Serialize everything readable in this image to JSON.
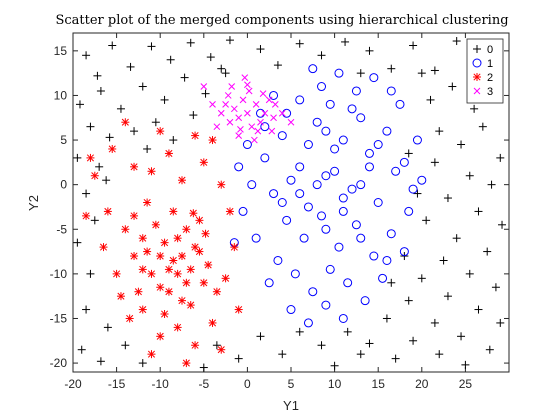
{
  "chart_data": {
    "type": "scatter",
    "title": "Scatter plot of the merged components using hierarchical clustering",
    "xlabel": "Y1",
    "ylabel": "Y2",
    "xlim": [
      -20,
      30
    ],
    "ylim": [
      -21,
      17
    ],
    "xticks": [
      -20,
      -15,
      -10,
      -5,
      0,
      5,
      10,
      15,
      20,
      25
    ],
    "yticks": [
      -20,
      -15,
      -10,
      -5,
      0,
      5,
      10,
      15
    ],
    "grid": false,
    "legend_position": "top-right",
    "series": [
      {
        "name": "0",
        "marker": "plus",
        "color": "#000000",
        "points": [
          [
            -18.5,
            14.5
          ],
          [
            -17.2,
            12.2
          ],
          [
            -15.5,
            15.6
          ],
          [
            -13.4,
            13.2
          ],
          [
            -11.0,
            15.5
          ],
          [
            -8.8,
            14.0
          ],
          [
            -6.5,
            15.9
          ],
          [
            -4.2,
            14.3
          ],
          [
            -2.0,
            16.2
          ],
          [
            1.5,
            15.2
          ],
          [
            3.5,
            13.4
          ],
          [
            6.0,
            15.8
          ],
          [
            8.5,
            14.5
          ],
          [
            11.2,
            16.0
          ],
          [
            14.0,
            15.0
          ],
          [
            16.5,
            13.0
          ],
          [
            19.0,
            15.6
          ],
          [
            21.5,
            12.8
          ],
          [
            24.0,
            16.1
          ],
          [
            26.8,
            14.1
          ],
          [
            28.8,
            12.0
          ],
          [
            -19.2,
            9.0
          ],
          [
            -16.8,
            10.5
          ],
          [
            -14.5,
            8.5
          ],
          [
            -12.0,
            11.0
          ],
          [
            -9.5,
            9.5
          ],
          [
            -7.2,
            12.0
          ],
          [
            -4.8,
            10.2
          ],
          [
            -3.0,
            13.0
          ],
          [
            -18.0,
            6.5
          ],
          [
            -15.8,
            5.3
          ],
          [
            -13.0,
            6.0
          ],
          [
            -10.5,
            7.0
          ],
          [
            -8.5,
            5.0
          ],
          [
            -6.2,
            7.8
          ],
          [
            -19.5,
            3.0
          ],
          [
            -17.0,
            2.0
          ],
          [
            -18.5,
            -1.0
          ],
          [
            -16.2,
            0.5
          ],
          [
            21.0,
            9.5
          ],
          [
            23.5,
            11.0
          ],
          [
            26.0,
            8.5
          ],
          [
            28.5,
            10.0
          ],
          [
            22.0,
            6.0
          ],
          [
            24.5,
            4.5
          ],
          [
            27.0,
            6.5
          ],
          [
            29.0,
            3.0
          ],
          [
            25.5,
            1.0
          ],
          [
            21.5,
            2.5
          ],
          [
            28.0,
            0.0
          ],
          [
            23.0,
            -1.5
          ],
          [
            26.5,
            -3.0
          ],
          [
            29.2,
            -4.5
          ],
          [
            20.5,
            -4.0
          ],
          [
            24.0,
            -6.0
          ],
          [
            27.5,
            -7.5
          ],
          [
            22.5,
            -8.5
          ],
          [
            25.5,
            -10.0
          ],
          [
            28.5,
            -11.5
          ],
          [
            20.0,
            -10.5
          ],
          [
            23.0,
            -12.5
          ],
          [
            26.5,
            -14.0
          ],
          [
            29.0,
            -15.5
          ],
          [
            18.5,
            -13.0
          ],
          [
            21.5,
            -15.5
          ],
          [
            24.5,
            -17.0
          ],
          [
            27.8,
            -18.5
          ],
          [
            16.0,
            -15.0
          ],
          [
            19.0,
            -17.5
          ],
          [
            22.0,
            -19.0
          ],
          [
            25.0,
            -20.2
          ],
          [
            14.0,
            -17.8
          ],
          [
            17.0,
            -19.5
          ],
          [
            11.5,
            -16.5
          ],
          [
            13.0,
            -19.0
          ],
          [
            8.5,
            -18.0
          ],
          [
            10.0,
            -20.3
          ],
          [
            6.0,
            -16.5
          ],
          [
            4.0,
            -19.0
          ],
          [
            1.5,
            -17.0
          ],
          [
            -1.0,
            -19.5
          ],
          [
            -3.5,
            -18.0
          ],
          [
            -5.0,
            -20.5
          ],
          [
            -18.5,
            -14.0
          ],
          [
            -16.0,
            -16.0
          ],
          [
            -19.0,
            -18.5
          ],
          [
            -16.8,
            -19.8
          ],
          [
            -14.0,
            -18.0
          ],
          [
            -12.0,
            -20.0
          ],
          [
            -18.0,
            -10.0
          ],
          [
            -19.5,
            -6.5
          ],
          [
            -17.5,
            -4.0
          ],
          [
            18.0,
            -8.0
          ],
          [
            16.5,
            -11.0
          ],
          [
            19.5,
            -1.0
          ],
          [
            18.5,
            3.5
          ],
          [
            20.0,
            12.5
          ],
          [
            -11.5,
            4.0
          ],
          [
            -2.5,
            12.5
          ],
          [
            13.0,
            12.5
          ]
        ]
      },
      {
        "name": "1",
        "marker": "circle",
        "color": "#0000ff",
        "points": [
          [
            2.0,
            3.0
          ],
          [
            4.0,
            5.5
          ],
          [
            6.0,
            2.0
          ],
          [
            8.0,
            7.0
          ],
          [
            10.0,
            4.0
          ],
          [
            12.0,
            8.5
          ],
          [
            14.0,
            3.5
          ],
          [
            16.0,
            6.0
          ],
          [
            18.0,
            2.5
          ],
          [
            3.0,
            -1.0
          ],
          [
            5.0,
            0.5
          ],
          [
            7.0,
            -2.5
          ],
          [
            9.0,
            1.0
          ],
          [
            11.0,
            -1.5
          ],
          [
            13.0,
            0.0
          ],
          [
            15.0,
            -2.0
          ],
          [
            17.0,
            1.5
          ],
          [
            19.0,
            -0.5
          ],
          [
            4.5,
            -4.0
          ],
          [
            6.5,
            -6.0
          ],
          [
            8.5,
            -3.5
          ],
          [
            10.5,
            -7.0
          ],
          [
            12.5,
            -4.5
          ],
          [
            14.5,
            -8.0
          ],
          [
            16.5,
            -5.5
          ],
          [
            18.5,
            -3.0
          ],
          [
            3.5,
            -8.5
          ],
          [
            5.5,
            -10.0
          ],
          [
            7.5,
            -12.0
          ],
          [
            9.5,
            -9.5
          ],
          [
            11.5,
            -11.0
          ],
          [
            13.5,
            -13.0
          ],
          [
            15.5,
            -10.5
          ],
          [
            5.0,
            -14.0
          ],
          [
            7.0,
            -15.5
          ],
          [
            9.0,
            -13.5
          ],
          [
            11.0,
            -15.0
          ],
          [
            6.0,
            9.5
          ],
          [
            8.5,
            11.0
          ],
          [
            10.5,
            12.5
          ],
          [
            12.5,
            10.5
          ],
          [
            14.5,
            12.0
          ],
          [
            7.5,
            13.0
          ],
          [
            9.5,
            9.0
          ],
          [
            0.5,
            0.0
          ],
          [
            -0.5,
            -3.0
          ],
          [
            1.0,
            -6.0
          ],
          [
            0.0,
            4.5
          ],
          [
            1.5,
            8.0
          ],
          [
            3.0,
            10.0
          ],
          [
            19.5,
            5.0
          ],
          [
            20.0,
            0.5
          ],
          [
            17.5,
            9.0
          ],
          [
            16.0,
            -8.5
          ],
          [
            18.0,
            -7.5
          ],
          [
            2.5,
            -11.0
          ],
          [
            4.0,
            -2.0
          ],
          [
            6.0,
            -1.0
          ],
          [
            8.0,
            0.0
          ],
          [
            10.0,
            1.5
          ],
          [
            12.0,
            -0.5
          ],
          [
            14.0,
            2.0
          ],
          [
            9.0,
            -5.0
          ],
          [
            11.0,
            -3.0
          ],
          [
            13.0,
            -6.0
          ],
          [
            7.0,
            4.5
          ],
          [
            9.0,
            6.0
          ],
          [
            11.0,
            5.0
          ],
          [
            13.0,
            7.5
          ],
          [
            15.0,
            4.5
          ],
          [
            2.0,
            6.5
          ],
          [
            4.5,
            8.0
          ],
          [
            16.5,
            10.5
          ],
          [
            -1.0,
            2.0
          ],
          [
            -1.5,
            -6.5
          ]
        ]
      },
      {
        "name": "2",
        "marker": "star",
        "color": "#ff0000",
        "points": [
          [
            -10.0,
            -8.0
          ],
          [
            -8.0,
            -10.0
          ],
          [
            -6.0,
            -7.0
          ],
          [
            -12.0,
            -6.0
          ],
          [
            -9.0,
            -12.0
          ],
          [
            -7.0,
            -5.0
          ],
          [
            -11.0,
            -10.0
          ],
          [
            -5.0,
            -11.0
          ],
          [
            -13.0,
            -8.0
          ],
          [
            -8.5,
            -3.0
          ],
          [
            -10.5,
            -4.5
          ],
          [
            -6.5,
            -13.5
          ],
          [
            -4.5,
            -9.0
          ],
          [
            -14.0,
            -5.0
          ],
          [
            -12.5,
            -12.0
          ],
          [
            -9.5,
            -14.5
          ],
          [
            -7.5,
            -8.0
          ],
          [
            -11.5,
            -2.0
          ],
          [
            -5.5,
            -4.0
          ],
          [
            -3.5,
            -12.0
          ],
          [
            -15.0,
            -10.0
          ],
          [
            -13.5,
            -15.0
          ],
          [
            -8.0,
            -16.0
          ],
          [
            -6.0,
            -18.0
          ],
          [
            -10.0,
            -17.0
          ],
          [
            -4.0,
            -15.5
          ],
          [
            -16.0,
            -3.0
          ],
          [
            -17.5,
            1.0
          ],
          [
            -15.5,
            4.0
          ],
          [
            -13.0,
            2.0
          ],
          [
            -11.0,
            1.5
          ],
          [
            -9.0,
            3.5
          ],
          [
            -7.5,
            0.5
          ],
          [
            -5.0,
            2.5
          ],
          [
            -3.0,
            0.0
          ],
          [
            -2.0,
            -3.0
          ],
          [
            -1.5,
            -7.0
          ],
          [
            -2.5,
            -10.5
          ],
          [
            -1.0,
            -14.0
          ],
          [
            -3.0,
            -18.5
          ],
          [
            -7.0,
            -20.0
          ],
          [
            -11.0,
            -19.0
          ],
          [
            -12.0,
            -14.0
          ],
          [
            -14.5,
            -12.5
          ],
          [
            -16.5,
            -7.0
          ],
          [
            -18.5,
            -3.5
          ],
          [
            -18.0,
            3.0
          ],
          [
            -14.0,
            7.0
          ],
          [
            -10.0,
            6.0
          ],
          [
            -6.0,
            5.5
          ],
          [
            -4.0,
            5.0
          ],
          [
            -9.5,
            -6.5
          ],
          [
            -8.5,
            -8.5
          ],
          [
            -7.0,
            -11.0
          ],
          [
            -6.5,
            -9.5
          ],
          [
            -11.5,
            -7.5
          ],
          [
            -10.0,
            -11.5
          ],
          [
            -8.0,
            -6.0
          ],
          [
            -9.0,
            -9.5
          ],
          [
            -7.5,
            -13.0
          ],
          [
            -12.0,
            -9.5
          ],
          [
            -13.0,
            -3.5
          ],
          [
            -5.5,
            -7.5
          ],
          [
            -4.8,
            -5.5
          ],
          [
            -6.2,
            -3.2
          ]
        ]
      },
      {
        "name": "3",
        "marker": "x",
        "color": "#ff00ff",
        "points": [
          [
            0.0,
            8.0
          ],
          [
            1.0,
            9.0
          ],
          [
            -1.0,
            7.5
          ],
          [
            0.5,
            6.5
          ],
          [
            -0.5,
            9.5
          ],
          [
            1.5,
            7.0
          ],
          [
            -1.5,
            8.5
          ],
          [
            2.0,
            8.0
          ],
          [
            -2.0,
            7.0
          ],
          [
            0.2,
            10.5
          ],
          [
            1.2,
            6.0
          ],
          [
            -0.8,
            6.2
          ],
          [
            2.5,
            9.5
          ],
          [
            -2.5,
            9.0
          ],
          [
            3.0,
            7.5
          ],
          [
            -3.0,
            8.0
          ],
          [
            0.0,
            11.2
          ],
          [
            -1.0,
            5.5
          ],
          [
            1.8,
            10.2
          ],
          [
            -2.2,
            10.0
          ],
          [
            3.2,
            9.0
          ],
          [
            -3.5,
            6.5
          ],
          [
            0.8,
            5.0
          ],
          [
            -4.0,
            9.0
          ],
          [
            4.0,
            8.0
          ],
          [
            -1.8,
            11.0
          ],
          [
            2.8,
            6.0
          ],
          [
            -0.3,
            12.0
          ],
          [
            -5.0,
            11.0
          ],
          [
            5.0,
            7.0
          ]
        ]
      }
    ]
  }
}
